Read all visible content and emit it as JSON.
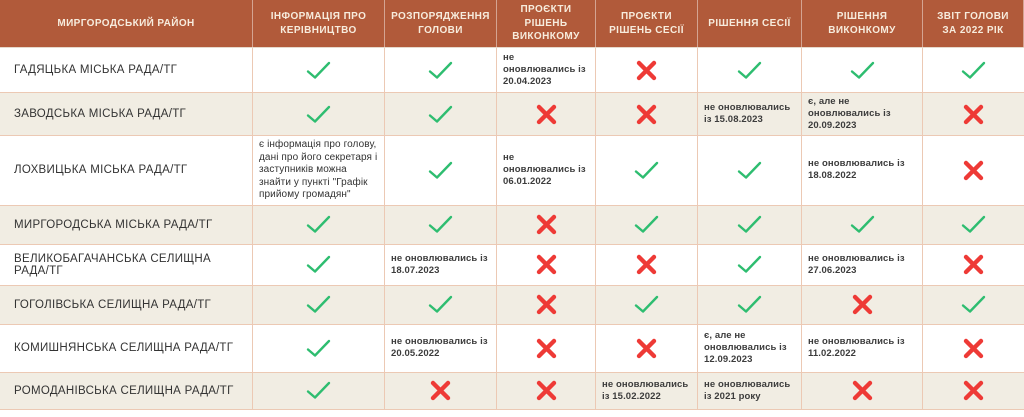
{
  "colors": {
    "header_bg": "#b15a3a",
    "header_text": "#f7ecdd",
    "row_alt_bg": "#f1ede3",
    "border": "#ecc9b4",
    "check_green": "#2ebd70",
    "cross_red": "#ee3a36",
    "note_text": "#3c3c3c"
  },
  "table": {
    "district_header": "МИРГОРОДСЬКИЙ РАЙОН",
    "columns": [
      "ІНФОРМАЦІЯ ПРО КЕРІВНИЦТВО",
      "РОЗПОРЯДЖЕННЯ ГОЛОВИ",
      "ПРОЄКТИ РІШЕНЬ ВИКОНКОМУ",
      "ПРОЄКТИ РІШЕНЬ СЕСІЇ",
      "РІШЕННЯ СЕСІЇ",
      "РІШЕННЯ ВИКОНКОМУ",
      "ЗВІТ ГОЛОВИ ЗА 2022 РІК"
    ],
    "legend": {
      "check_meaning": "check-icon",
      "cross_meaning": "cross-icon"
    },
    "rows": [
      {
        "name": "ГАДЯЦЬКА МІСЬКА РАДА/ТГ",
        "cells": [
          {
            "v": "check"
          },
          {
            "v": "check"
          },
          {
            "v": "text",
            "t": "не оновлювались із 20.04.2023"
          },
          {
            "v": "cross"
          },
          {
            "v": "check"
          },
          {
            "v": "check"
          },
          {
            "v": "check"
          }
        ]
      },
      {
        "name": "ЗАВОДСЬКА МІСЬКА РАДА/ТГ",
        "cells": [
          {
            "v": "check"
          },
          {
            "v": "check"
          },
          {
            "v": "cross"
          },
          {
            "v": "cross"
          },
          {
            "v": "text",
            "t": "не оновлювались із 15.08.2023"
          },
          {
            "v": "text",
            "t": "є, але не оновлювались із 20.09.2023"
          },
          {
            "v": "cross"
          }
        ]
      },
      {
        "name": "ЛОХВИЦЬКА МІСЬКА РАДА/ТГ",
        "cells": [
          {
            "v": "text",
            "info": true,
            "t": "є інформація про голову, дані про його секретаря і заступників можна знайти у пункті \"Графік прийому громадян\""
          },
          {
            "v": "check"
          },
          {
            "v": "text",
            "t": "не оновлювались із 06.01.2022"
          },
          {
            "v": "check"
          },
          {
            "v": "check"
          },
          {
            "v": "text",
            "t": "не оновлювались із 18.08.2022"
          },
          {
            "v": "cross"
          }
        ]
      },
      {
        "name": "МИРГОРОДСЬКА МІСЬКА РАДА/ТГ",
        "cells": [
          {
            "v": "check"
          },
          {
            "v": "check"
          },
          {
            "v": "cross"
          },
          {
            "v": "check"
          },
          {
            "v": "check"
          },
          {
            "v": "check"
          },
          {
            "v": "check"
          }
        ]
      },
      {
        "name": "ВЕЛИКОБАГАЧАНСЬКА СЕЛИЩНА РАДА/ТГ",
        "cells": [
          {
            "v": "check"
          },
          {
            "v": "text",
            "t": "не оновлювались із 18.07.2023"
          },
          {
            "v": "cross"
          },
          {
            "v": "cross"
          },
          {
            "v": "check"
          },
          {
            "v": "text",
            "t": "не оновлювались із 27.06.2023"
          },
          {
            "v": "cross"
          }
        ]
      },
      {
        "name": "ГОГОЛІВСЬКА СЕЛИЩНА РАДА/ТГ",
        "cells": [
          {
            "v": "check"
          },
          {
            "v": "check"
          },
          {
            "v": "cross"
          },
          {
            "v": "check"
          },
          {
            "v": "check"
          },
          {
            "v": "cross"
          },
          {
            "v": "check"
          }
        ]
      },
      {
        "name": "КОМИШНЯНСЬКА СЕЛИЩНА РАДА/ТГ",
        "cells": [
          {
            "v": "check"
          },
          {
            "v": "text",
            "t": "не оновлювались із 20.05.2022"
          },
          {
            "v": "cross"
          },
          {
            "v": "cross"
          },
          {
            "v": "text",
            "t": "є, але не оновлювались із 12.09.2023"
          },
          {
            "v": "text",
            "t": "не оновлювались із 11.02.2022"
          },
          {
            "v": "cross"
          }
        ]
      },
      {
        "name": "РОМОДАНІВСЬКА СЕЛИЩНА РАДА/ТГ",
        "cells": [
          {
            "v": "check"
          },
          {
            "v": "cross"
          },
          {
            "v": "cross"
          },
          {
            "v": "text",
            "t": "не оновлювались із 15.02.2022"
          },
          {
            "v": "text",
            "t": "не оновлювались із 2021 року"
          },
          {
            "v": "cross"
          },
          {
            "v": "cross"
          }
        ]
      }
    ]
  }
}
